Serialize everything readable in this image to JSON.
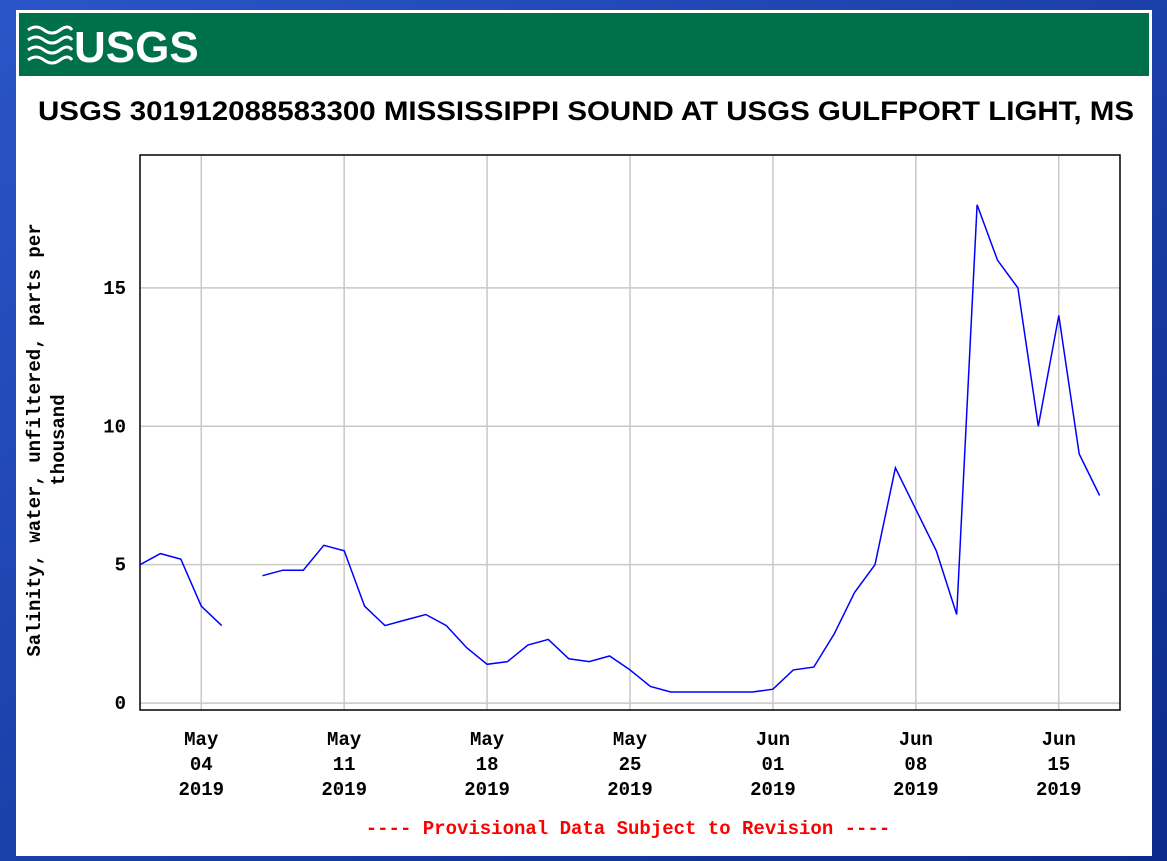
{
  "header": {
    "logo": "USGS"
  },
  "chart_data": {
    "type": "line",
    "title": "USGS 301912088583300 MISSISSIPPI SOUND AT USGS GULFPORT LIGHT, MS",
    "ylabel": [
      "Salinity, water, unfiltered, parts per",
      "thousand"
    ],
    "footer": "---- Provisional Data Subject to Revision ----",
    "x": [
      "2019-05-01",
      "2019-05-02",
      "2019-05-03",
      "2019-05-04",
      "2019-05-05",
      "2019-05-06",
      "2019-05-07",
      "2019-05-08",
      "2019-05-09",
      "2019-05-10",
      "2019-05-11",
      "2019-05-12",
      "2019-05-13",
      "2019-05-14",
      "2019-05-15",
      "2019-05-16",
      "2019-05-17",
      "2019-05-18",
      "2019-05-19",
      "2019-05-20",
      "2019-05-21",
      "2019-05-22",
      "2019-05-23",
      "2019-05-24",
      "2019-05-25",
      "2019-05-26",
      "2019-05-27",
      "2019-05-28",
      "2019-05-29",
      "2019-05-30",
      "2019-05-31",
      "2019-06-01",
      "2019-06-02",
      "2019-06-03",
      "2019-06-04",
      "2019-06-05",
      "2019-06-06",
      "2019-06-07",
      "2019-06-08",
      "2019-06-09",
      "2019-06-10",
      "2019-06-11",
      "2019-06-12",
      "2019-06-13",
      "2019-06-14",
      "2019-06-15",
      "2019-06-16",
      "2019-06-17"
    ],
    "series": [
      {
        "name": "Salinity",
        "color": "#0000ff",
        "values": [
          5.0,
          5.4,
          5.2,
          3.5,
          2.8,
          null,
          4.6,
          4.8,
          4.8,
          5.7,
          5.5,
          3.5,
          2.8,
          3.0,
          3.2,
          2.8,
          2.0,
          1.4,
          1.5,
          2.1,
          2.3,
          1.6,
          1.5,
          1.7,
          1.2,
          0.6,
          0.4,
          0.4,
          0.4,
          0.4,
          0.4,
          0.5,
          1.2,
          1.3,
          2.5,
          4.0,
          5.0,
          8.5,
          7.0,
          5.5,
          3.2,
          18.0,
          16.0,
          15.0,
          10.0,
          14.0,
          9.0,
          7.5
        ]
      }
    ],
    "xlim": [
      "2019-05-01",
      "2019-06-18"
    ],
    "xticks": [
      {
        "value": "2019-05-04",
        "label": [
          "May",
          "04",
          "2019"
        ]
      },
      {
        "value": "2019-05-11",
        "label": [
          "May",
          "11",
          "2019"
        ]
      },
      {
        "value": "2019-05-18",
        "label": [
          "May",
          "18",
          "2019"
        ]
      },
      {
        "value": "2019-05-25",
        "label": [
          "May",
          "25",
          "2019"
        ]
      },
      {
        "value": "2019-06-01",
        "label": [
          "Jun",
          "01",
          "2019"
        ]
      },
      {
        "value": "2019-06-08",
        "label": [
          "Jun",
          "08",
          "2019"
        ]
      },
      {
        "value": "2019-06-15",
        "label": [
          "Jun",
          "15",
          "2019"
        ]
      }
    ],
    "ylim": [
      -0.25,
      19.8
    ],
    "yticks": [
      0,
      5,
      10,
      15
    ],
    "grid": true
  }
}
